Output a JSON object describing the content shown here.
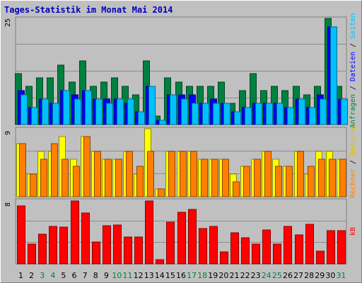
{
  "chart_data": [
    {
      "type": "bar",
      "title": "Tages-Statistik im Monat Mai 2014",
      "panel": "Anfragen / Dateien / Seiten",
      "categories": [
        "1",
        "2",
        "3",
        "4",
        "5",
        "6",
        "7",
        "8",
        "9",
        "10",
        "11",
        "12",
        "13",
        "14",
        "15",
        "16",
        "17",
        "18",
        "19",
        "20",
        "21",
        "22",
        "23",
        "24",
        "25",
        "26",
        "27",
        "28",
        "29",
        "30",
        "31"
      ],
      "weekend_days": [
        "3",
        "4",
        "10",
        "11",
        "17",
        "18",
        "24",
        "25",
        "31"
      ],
      "ylim": [
        0,
        25
      ],
      "ytick_label": "25",
      "ylabel_parts": [
        "Anfragen",
        "Dateien",
        "Seiten"
      ],
      "series": [
        {
          "name": "Anfragen",
          "color": "#008040",
          "values": [
            12,
            9,
            11,
            11,
            14,
            10,
            15,
            9,
            10,
            11,
            9,
            7,
            15,
            2,
            11,
            10,
            9,
            9,
            9,
            10,
            5,
            8,
            12,
            8,
            9,
            8,
            9,
            7,
            9,
            25,
            9
          ]
        },
        {
          "name": "Dateien",
          "color": "#0000ff",
          "values": [
            8,
            4,
            6,
            5,
            8,
            7,
            8,
            6,
            6,
            6,
            5,
            3,
            9,
            1,
            7,
            7,
            7,
            5,
            6,
            5,
            3,
            4,
            5,
            5,
            5,
            4,
            6,
            4,
            7,
            23,
            6
          ]
        },
        {
          "name": "Seiten",
          "color": "#00c0ff",
          "values": [
            7,
            4,
            6,
            5,
            8,
            6,
            8,
            6,
            5,
            6,
            6,
            3,
            9,
            1,
            7,
            6,
            5,
            5,
            5,
            5,
            3,
            4,
            5,
            5,
            5,
            4,
            6,
            4,
            6,
            23,
            6
          ]
        }
      ]
    },
    {
      "type": "bar",
      "panel": "Besuche / Rechner",
      "categories": [
        "1",
        "2",
        "3",
        "4",
        "5",
        "6",
        "7",
        "8",
        "9",
        "10",
        "11",
        "12",
        "13",
        "14",
        "15",
        "16",
        "17",
        "18",
        "19",
        "20",
        "21",
        "22",
        "23",
        "24",
        "25",
        "26",
        "27",
        "28",
        "29",
        "30",
        "31"
      ],
      "ylim": [
        0,
        9
      ],
      "ytick_label": "9",
      "ylabel_parts": [
        "Rechner",
        "Besuche"
      ],
      "series": [
        {
          "name": "Besuche",
          "color": "#ffff00",
          "values": [
            7,
            3,
            6,
            6,
            8,
            5,
            8,
            6,
            5,
            5,
            6,
            3,
            9,
            1,
            6,
            6,
            6,
            5,
            5,
            5,
            3,
            4,
            5,
            6,
            5,
            4,
            6,
            3,
            6,
            6,
            5
          ]
        },
        {
          "name": "Rechner",
          "color": "#ff8000",
          "values": [
            7,
            3,
            5,
            7,
            5,
            4,
            8,
            6,
            5,
            5,
            6,
            4,
            6,
            1,
            6,
            6,
            6,
            5,
            5,
            5,
            2,
            4,
            5,
            6,
            4,
            4,
            6,
            4,
            5,
            5,
            5
          ]
        }
      ]
    },
    {
      "type": "bar",
      "panel": "kB",
      "categories": [
        "1",
        "2",
        "3",
        "4",
        "5",
        "6",
        "7",
        "8",
        "9",
        "10",
        "11",
        "12",
        "13",
        "14",
        "15",
        "16",
        "17",
        "18",
        "19",
        "20",
        "21",
        "22",
        "23",
        "24",
        "25",
        "26",
        "27",
        "28",
        "29",
        "30",
        "31"
      ],
      "ylim": [
        0,
        8
      ],
      "ytick_label": "8",
      "ylabel_parts": [
        "kB"
      ],
      "series": [
        {
          "name": "kB",
          "color": "#ff0000",
          "values": [
            7.3,
            2.5,
            3.7,
            4.7,
            4.6,
            7.9,
            6.4,
            2.8,
            4.8,
            4.9,
            3.4,
            3.4,
            7.9,
            0.5,
            5.2,
            6.5,
            6.8,
            4.4,
            4.7,
            1.5,
            3.9,
            3.3,
            2.5,
            4.3,
            2.5,
            4.7,
            3.6,
            5.0,
            1.6,
            4.2,
            4.2
          ]
        }
      ]
    }
  ]
}
